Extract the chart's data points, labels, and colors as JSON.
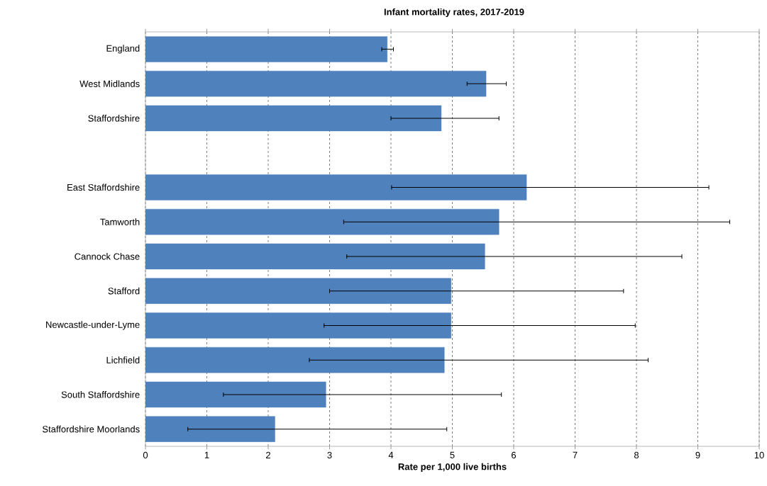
{
  "chart_data": {
    "type": "bar",
    "orientation": "horizontal",
    "title": "Infant mortality rates, 2017-2019",
    "xlabel": "Rate per 1,000 live births",
    "categories": [
      "England",
      "West Midlands",
      "Staffordshire",
      null,
      "East Staffordshire",
      "Tamworth",
      "Cannock Chase",
      "Stafford",
      "Newcastle-under-Lyme",
      "Lichfield",
      "South Staffordshire",
      "Staffordshire Moorlands"
    ],
    "values": [
      3.94,
      5.55,
      4.82,
      null,
      6.21,
      5.76,
      5.53,
      4.98,
      4.98,
      4.87,
      2.94,
      2.11
    ],
    "errors": [
      [
        3.85,
        4.04
      ],
      [
        5.24,
        5.88
      ],
      [
        4.0,
        5.76
      ],
      null,
      [
        4.01,
        9.18
      ],
      [
        3.23,
        9.52
      ],
      [
        3.28,
        8.74
      ],
      [
        3.0,
        7.79
      ],
      [
        2.91,
        7.98
      ],
      [
        2.67,
        8.19
      ],
      [
        1.27,
        5.8
      ],
      [
        0.69,
        4.91
      ]
    ],
    "color": "#4f81bd",
    "xlim": [
      0,
      10
    ],
    "xticks": [
      0,
      1,
      2,
      3,
      4,
      5,
      6,
      7,
      8,
      9,
      10
    ],
    "grid": "x"
  }
}
